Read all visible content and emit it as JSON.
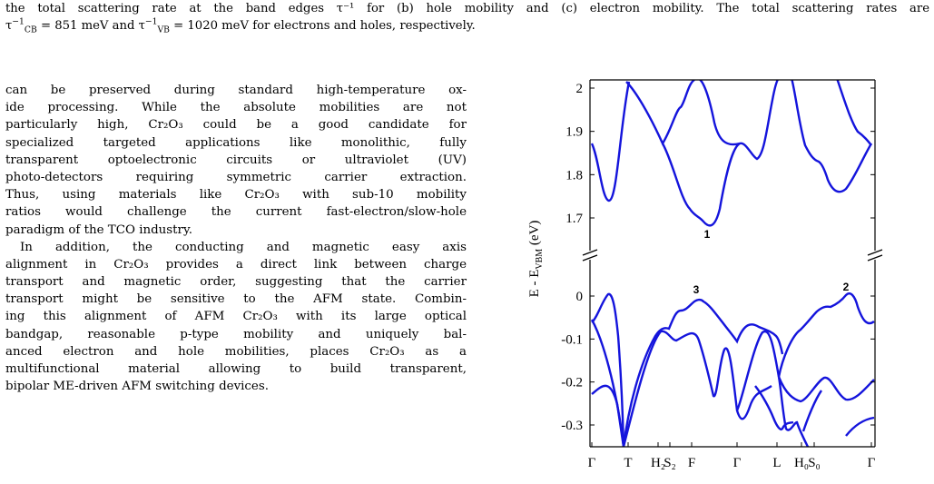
{
  "caption": {
    "line1": "the total scattering rate at the band edges τ⁻¹ for (b) hole mobility and (c) electron mobility. The total scattering rates are",
    "line2_prefix": "τ",
    "cb_sub": "CB",
    "cb_value": " = 851 meV and τ",
    "vb_sub": "VB",
    "line2_suffix": " = 1020 meV for electrons and holes, respectively."
  },
  "body": {
    "lines": [
      "can be preserved during standard high-temperature ox-",
      "ide processing. While the absolute mobilities are not",
      "particularly high, Cr₂O₃ could be a good candidate for",
      "specialized targeted applications like monolithic, fully",
      "transparent optoelectronic circuits or ultraviolet (UV)",
      "photo-detectors requiring symmetric carrier extraction.",
      "Thus, using materials like Cr₂O₃ with sub-10 mobility",
      "ratios would challenge the current fast-electron/slow-hole",
      "paradigm of the TCO industry."
    ],
    "lines2": [
      "In addition, the conducting and magnetic easy axis",
      "alignment in Cr₂O₃ provides a direct link between charge",
      "transport and magnetic order, suggesting that the carrier",
      "transport might be sensitive to the AFM state. Combin-",
      "ing this alignment of AFM Cr₂O₃ with its large optical",
      "bandgap, reasonable p-type mobility and uniquely bal-",
      "anced electron and hole mobilities, places Cr₂O₃ as a",
      "multifunctional material allowing to build transparent,",
      "bipolar ME-driven AFM switching devices."
    ]
  },
  "chart_data": {
    "type": "line",
    "ylabel": "E - E_VBM (eV)",
    "ylabel_main": "E - E",
    "ylabel_sub": "VBM",
    "ylabel_unit": " (eV)",
    "x_ticks": [
      "Γ",
      "T",
      "H₂",
      "S₂",
      "F",
      "Γ",
      "L",
      "H₀",
      "S₀",
      "Γ"
    ],
    "upper_panel": {
      "ylim": [
        1.6,
        2.02
      ],
      "yticks": [
        "2",
        "1.9",
        "1.8",
        "1.7"
      ]
    },
    "lower_panel": {
      "ylim": [
        -0.36,
        0.05
      ],
      "yticks": [
        "0",
        "-0.1",
        "-0.2",
        "-0.3"
      ]
    },
    "annotations": [
      "1",
      "2",
      "3"
    ],
    "line_color": "#1414dc"
  }
}
